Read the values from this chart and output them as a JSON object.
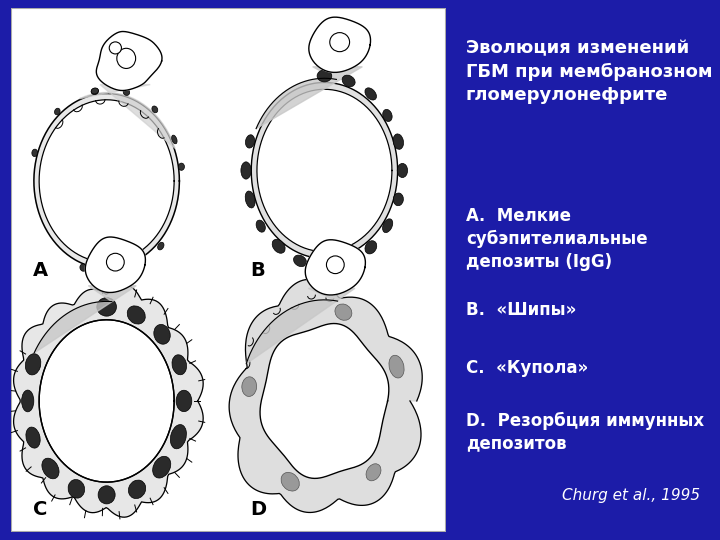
{
  "bg_color": "#1c1ca8",
  "panel_bg": "#ffffff",
  "title": "Эволюция изменений\nГБМ при мембранозном\nгломерулонефрите",
  "items": [
    "А.  Мелкие\nсубэпителиальные\nдепозиты (IgG)",
    "В.  «Шипы»",
    "С.  «Купола»",
    "D.  Резорбция иммунных\nдепозитов"
  ],
  "citation": "Churg et al., 1995",
  "labels": [
    "A",
    "B",
    "C",
    "D"
  ],
  "text_color": "#ffffff",
  "title_fontsize": 13,
  "item_fontsize": 12,
  "citation_fontsize": 11,
  "label_fontsize": 13
}
